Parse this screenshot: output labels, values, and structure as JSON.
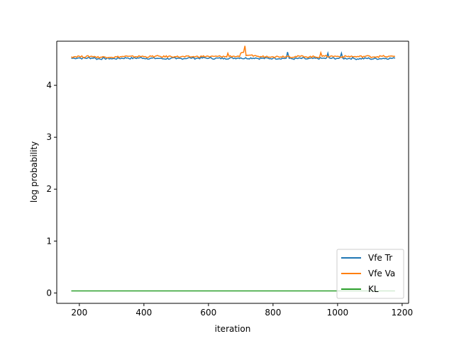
{
  "chart_data": {
    "type": "line",
    "xlabel": "iteration",
    "ylabel": "log probability",
    "xlim": [
      130,
      1220
    ],
    "ylim": [
      -0.2,
      4.85
    ],
    "xticks": [
      200,
      400,
      600,
      800,
      1000,
      1200
    ],
    "yticks": [
      0,
      1,
      2,
      3,
      4
    ],
    "x_range": [
      175,
      1178
    ],
    "grid": false,
    "legend_position": "lower-right",
    "series": [
      {
        "name": "Vfe Tr",
        "color": "#1f77b4",
        "x": [
          175,
          200,
          250,
          300,
          350,
          400,
          450,
          500,
          550,
          600,
          650,
          700,
          750,
          800,
          845,
          850,
          900,
          950,
          970,
          1000,
          1012,
          1050,
          1100,
          1150,
          1178
        ],
        "values": [
          4.52,
          4.53,
          4.52,
          4.51,
          4.53,
          4.52,
          4.52,
          4.51,
          4.53,
          4.52,
          4.52,
          4.53,
          4.52,
          4.52,
          4.64,
          4.52,
          4.51,
          4.52,
          4.62,
          4.52,
          4.62,
          4.52,
          4.51,
          4.52,
          4.52
        ]
      },
      {
        "name": "Vfe Va",
        "color": "#ff7f0e",
        "x": [
          175,
          200,
          250,
          300,
          350,
          400,
          450,
          500,
          550,
          600,
          650,
          660,
          680,
          700,
          713,
          720,
          750,
          800,
          850,
          900,
          948,
          960,
          1000,
          1050,
          1100,
          1150,
          1178
        ],
        "values": [
          4.55,
          4.56,
          4.55,
          4.54,
          4.56,
          4.55,
          4.56,
          4.55,
          4.55,
          4.56,
          4.55,
          4.62,
          4.56,
          4.62,
          4.76,
          4.58,
          4.56,
          4.55,
          4.56,
          4.55,
          4.63,
          4.56,
          4.56,
          4.55,
          4.56,
          4.55,
          4.56
        ]
      },
      {
        "name": "KL",
        "color": "#2ca02c",
        "x": [
          175,
          1178
        ],
        "values": [
          0.04,
          0.04
        ]
      }
    ]
  }
}
